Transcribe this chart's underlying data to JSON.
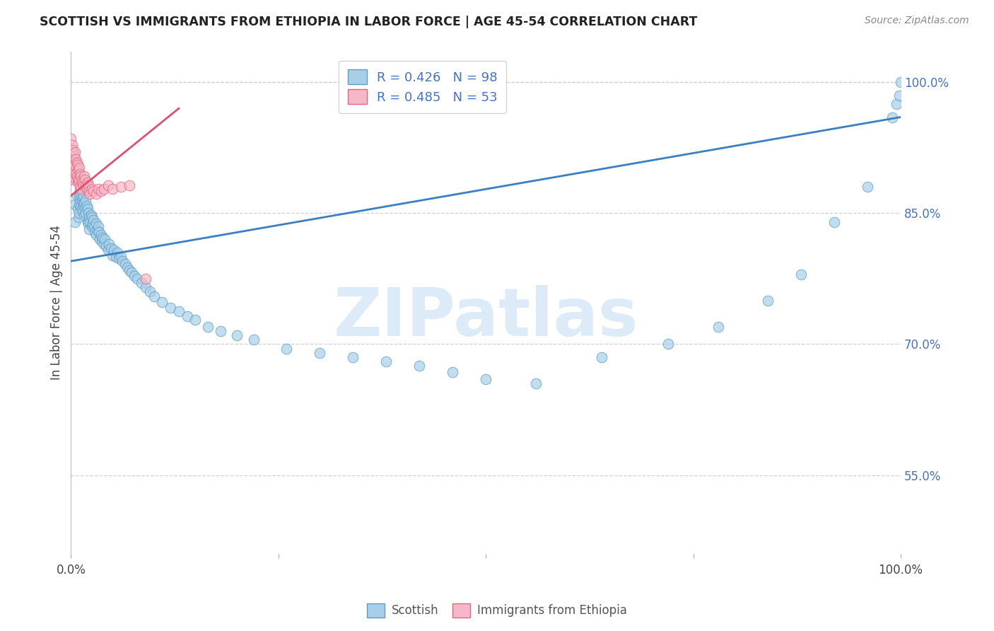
{
  "title": "SCOTTISH VS IMMIGRANTS FROM ETHIOPIA IN LABOR FORCE | AGE 45-54 CORRELATION CHART",
  "source": "Source: ZipAtlas.com",
  "ylabel": "In Labor Force | Age 45-54",
  "right_yticks": [
    55.0,
    70.0,
    85.0,
    100.0
  ],
  "xlim": [
    0.0,
    1.0
  ],
  "ylim": [
    0.46,
    1.035
  ],
  "legend_blue_r": "R = 0.426",
  "legend_blue_n": "N = 98",
  "legend_pink_r": "R = 0.485",
  "legend_pink_n": "N = 53",
  "blue_color": "#a8cfe8",
  "pink_color": "#f4b8c8",
  "blue_edge_color": "#5b9dc9",
  "pink_edge_color": "#e8637a",
  "blue_line_color": "#3a7fc1",
  "pink_line_color": "#e0506e",
  "blue_scatter_x": [
    0.005,
    0.005,
    0.007,
    0.008,
    0.009,
    0.01,
    0.01,
    0.01,
    0.011,
    0.011,
    0.012,
    0.012,
    0.013,
    0.013,
    0.014,
    0.014,
    0.015,
    0.015,
    0.016,
    0.016,
    0.017,
    0.018,
    0.018,
    0.019,
    0.02,
    0.02,
    0.021,
    0.021,
    0.022,
    0.022,
    0.023,
    0.024,
    0.025,
    0.025,
    0.026,
    0.027,
    0.028,
    0.029,
    0.03,
    0.03,
    0.032,
    0.033,
    0.034,
    0.035,
    0.036,
    0.037,
    0.038,
    0.04,
    0.041,
    0.042,
    0.045,
    0.046,
    0.048,
    0.05,
    0.052,
    0.054,
    0.056,
    0.058,
    0.06,
    0.062,
    0.065,
    0.068,
    0.07,
    0.073,
    0.076,
    0.08,
    0.085,
    0.09,
    0.095,
    0.1,
    0.11,
    0.12,
    0.13,
    0.14,
    0.15,
    0.165,
    0.18,
    0.2,
    0.22,
    0.26,
    0.3,
    0.34,
    0.38,
    0.42,
    0.46,
    0.5,
    0.56,
    0.64,
    0.72,
    0.78,
    0.84,
    0.88,
    0.92,
    0.96,
    0.99,
    0.995,
    0.998,
    1.0
  ],
  "blue_scatter_y": [
    0.84,
    0.86,
    0.87,
    0.855,
    0.845,
    0.87,
    0.86,
    0.85,
    0.875,
    0.865,
    0.87,
    0.858,
    0.865,
    0.855,
    0.868,
    0.852,
    0.87,
    0.86,
    0.862,
    0.848,
    0.856,
    0.865,
    0.85,
    0.858,
    0.855,
    0.84,
    0.85,
    0.838,
    0.845,
    0.832,
    0.84,
    0.848,
    0.845,
    0.835,
    0.838,
    0.842,
    0.835,
    0.828,
    0.838,
    0.825,
    0.83,
    0.835,
    0.828,
    0.82,
    0.825,
    0.818,
    0.822,
    0.815,
    0.82,
    0.812,
    0.808,
    0.815,
    0.81,
    0.802,
    0.808,
    0.8,
    0.805,
    0.798,
    0.8,
    0.795,
    0.792,
    0.788,
    0.785,
    0.782,
    0.778,
    0.775,
    0.77,
    0.765,
    0.76,
    0.755,
    0.748,
    0.742,
    0.738,
    0.732,
    0.728,
    0.72,
    0.715,
    0.71,
    0.705,
    0.695,
    0.69,
    0.685,
    0.68,
    0.675,
    0.668,
    0.66,
    0.655,
    0.685,
    0.7,
    0.72,
    0.75,
    0.78,
    0.84,
    0.88,
    0.96,
    0.975,
    0.985,
    1.0
  ],
  "pink_scatter_x": [
    0.0,
    0.0,
    0.0,
    0.001,
    0.001,
    0.001,
    0.002,
    0.002,
    0.002,
    0.003,
    0.003,
    0.003,
    0.004,
    0.004,
    0.005,
    0.005,
    0.005,
    0.006,
    0.006,
    0.007,
    0.007,
    0.008,
    0.008,
    0.009,
    0.009,
    0.01,
    0.01,
    0.011,
    0.011,
    0.012,
    0.012,
    0.013,
    0.014,
    0.015,
    0.016,
    0.017,
    0.018,
    0.019,
    0.02,
    0.021,
    0.022,
    0.023,
    0.025,
    0.027,
    0.03,
    0.033,
    0.036,
    0.04,
    0.045,
    0.05,
    0.06,
    0.07,
    0.09
  ],
  "pink_scatter_y": [
    0.935,
    0.92,
    0.905,
    0.928,
    0.915,
    0.9,
    0.922,
    0.908,
    0.892,
    0.918,
    0.905,
    0.888,
    0.915,
    0.9,
    0.92,
    0.905,
    0.89,
    0.912,
    0.895,
    0.908,
    0.892,
    0.905,
    0.888,
    0.9,
    0.885,
    0.902,
    0.888,
    0.895,
    0.88,
    0.892,
    0.878,
    0.888,
    0.885,
    0.882,
    0.892,
    0.888,
    0.882,
    0.878,
    0.885,
    0.882,
    0.875,
    0.872,
    0.878,
    0.875,
    0.872,
    0.878,
    0.875,
    0.878,
    0.882,
    0.878,
    0.88,
    0.882,
    0.775
  ],
  "blue_trend_x": [
    0.0,
    1.0
  ],
  "blue_trend_y": [
    0.795,
    0.96
  ],
  "pink_trend_x": [
    0.0,
    0.13
  ],
  "pink_trend_y": [
    0.87,
    0.97
  ],
  "watermark_text": "ZIPatlas",
  "background_color": "#ffffff",
  "grid_color": "#d0d0d0",
  "title_color": "#222222",
  "source_color": "#888888",
  "ylabel_color": "#444444",
  "xtick_color": "#444444",
  "ytick_right_color": "#4472c4"
}
